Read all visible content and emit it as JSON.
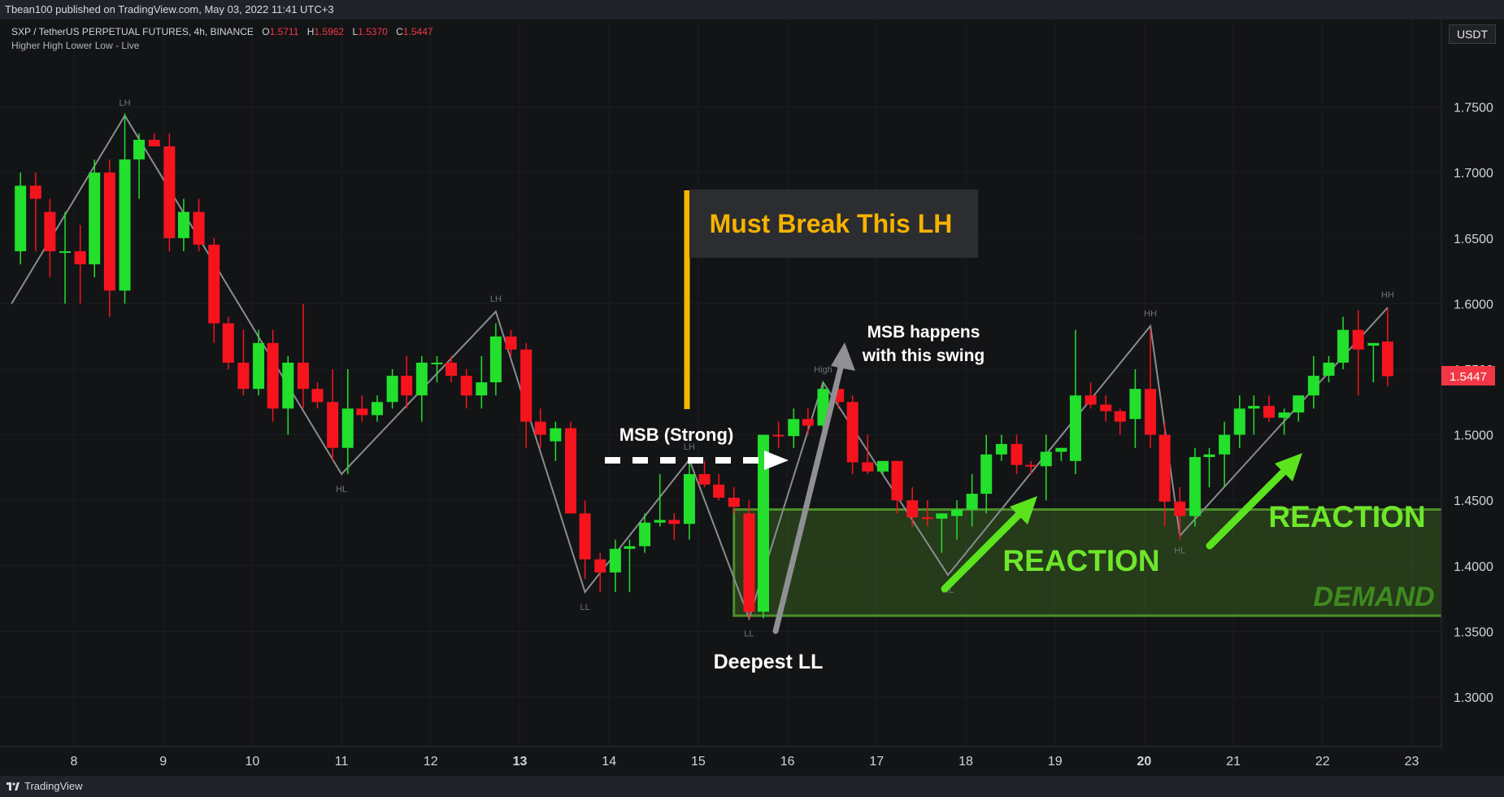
{
  "header": {
    "publish_line": "Tbean100 published on TradingView.com, May 03, 2022 11:41 UTC+3"
  },
  "footer": {
    "brand": "TradingView"
  },
  "legend": {
    "symbol_line": "SXP / TetherUS PERPETUAL FUTURES, 4h, BINANCE",
    "open_label": "O",
    "open": "1.5711",
    "high_label": "H",
    "high": "1.5962",
    "low_label": "L",
    "low": "1.5370",
    "close_label": "C",
    "close": "1.5447",
    "indicator": "Higher High Lower Low - Live"
  },
  "price_axis": {
    "currency": "USDT",
    "last_price": "1.5447",
    "last_price_color": "#f23645"
  },
  "colors": {
    "up": "#22e02c",
    "down": "#f5141e",
    "swing_line": "#8a8c90"
  },
  "chart_data": {
    "type": "candlestick",
    "ylim": [
      1.27,
      1.82
    ],
    "y_ticks": [
      1.3,
      1.35,
      1.4,
      1.45,
      1.5,
      1.55,
      1.6,
      1.65,
      1.7,
      1.75
    ],
    "y_tick_labels": [
      "1.3000",
      "1.3500",
      "1.4000",
      "1.4500",
      "1.5000",
      "1.5500",
      "1.6000",
      "1.6500",
      "1.7000",
      "1.7500"
    ],
    "x_ticks": [
      8,
      9,
      10,
      11,
      12,
      13,
      14,
      15,
      16,
      17,
      18,
      19,
      20,
      21,
      22,
      23
    ],
    "x_tick_labels": [
      "8",
      "9",
      "10",
      "11",
      "12",
      "13",
      "14",
      "15",
      "16",
      "17",
      "18",
      "19",
      "20",
      "21",
      "22",
      "23"
    ],
    "xlim": [
      7.3,
      23.4
    ],
    "candles": [
      {
        "t": 7.4,
        "o": 1.64,
        "h": 1.7,
        "l": 1.63,
        "c": 1.69
      },
      {
        "t": 7.57,
        "o": 1.69,
        "h": 1.7,
        "l": 1.64,
        "c": 1.68
      },
      {
        "t": 7.73,
        "o": 1.67,
        "h": 1.68,
        "l": 1.62,
        "c": 1.64
      },
      {
        "t": 7.9,
        "o": 1.64,
        "h": 1.67,
        "l": 1.6,
        "c": 1.64
      },
      {
        "t": 8.07,
        "o": 1.64,
        "h": 1.66,
        "l": 1.6,
        "c": 1.63
      },
      {
        "t": 8.23,
        "o": 1.63,
        "h": 1.71,
        "l": 1.62,
        "c": 1.7
      },
      {
        "t": 8.4,
        "o": 1.7,
        "h": 1.71,
        "l": 1.59,
        "c": 1.61
      },
      {
        "t": 8.57,
        "o": 1.61,
        "h": 1.745,
        "l": 1.6,
        "c": 1.71
      },
      {
        "t": 8.73,
        "o": 1.71,
        "h": 1.73,
        "l": 1.68,
        "c": 1.725
      },
      {
        "t": 8.9,
        "o": 1.725,
        "h": 1.73,
        "l": 1.72,
        "c": 1.72
      },
      {
        "t": 9.07,
        "o": 1.72,
        "h": 1.73,
        "l": 1.64,
        "c": 1.65
      },
      {
        "t": 9.23,
        "o": 1.65,
        "h": 1.68,
        "l": 1.64,
        "c": 1.67
      },
      {
        "t": 9.4,
        "o": 1.67,
        "h": 1.68,
        "l": 1.64,
        "c": 1.645
      },
      {
        "t": 9.57,
        "o": 1.645,
        "h": 1.65,
        "l": 1.57,
        "c": 1.585
      },
      {
        "t": 9.73,
        "o": 1.585,
        "h": 1.59,
        "l": 1.55,
        "c": 1.555
      },
      {
        "t": 9.9,
        "o": 1.555,
        "h": 1.58,
        "l": 1.53,
        "c": 1.535
      },
      {
        "t": 10.07,
        "o": 1.535,
        "h": 1.58,
        "l": 1.53,
        "c": 1.57
      },
      {
        "t": 10.23,
        "o": 1.57,
        "h": 1.58,
        "l": 1.51,
        "c": 1.52
      },
      {
        "t": 10.4,
        "o": 1.52,
        "h": 1.56,
        "l": 1.5,
        "c": 1.555
      },
      {
        "t": 10.57,
        "o": 1.555,
        "h": 1.6,
        "l": 1.52,
        "c": 1.535
      },
      {
        "t": 10.73,
        "o": 1.535,
        "h": 1.54,
        "l": 1.52,
        "c": 1.525
      },
      {
        "t": 10.9,
        "o": 1.525,
        "h": 1.55,
        "l": 1.48,
        "c": 1.49
      },
      {
        "t": 11.07,
        "o": 1.49,
        "h": 1.55,
        "l": 1.47,
        "c": 1.52
      },
      {
        "t": 11.23,
        "o": 1.52,
        "h": 1.53,
        "l": 1.51,
        "c": 1.515
      },
      {
        "t": 11.4,
        "o": 1.515,
        "h": 1.53,
        "l": 1.51,
        "c": 1.525
      },
      {
        "t": 11.57,
        "o": 1.525,
        "h": 1.55,
        "l": 1.52,
        "c": 1.545
      },
      {
        "t": 11.73,
        "o": 1.545,
        "h": 1.56,
        "l": 1.52,
        "c": 1.53
      },
      {
        "t": 11.9,
        "o": 1.53,
        "h": 1.56,
        "l": 1.51,
        "c": 1.555
      },
      {
        "t": 12.07,
        "o": 1.555,
        "h": 1.56,
        "l": 1.54,
        "c": 1.555
      },
      {
        "t": 12.23,
        "o": 1.555,
        "h": 1.56,
        "l": 1.54,
        "c": 1.545
      },
      {
        "t": 12.4,
        "o": 1.545,
        "h": 1.55,
        "l": 1.52,
        "c": 1.53
      },
      {
        "t": 12.57,
        "o": 1.53,
        "h": 1.56,
        "l": 1.52,
        "c": 1.54
      },
      {
        "t": 12.73,
        "o": 1.54,
        "h": 1.585,
        "l": 1.53,
        "c": 1.575
      },
      {
        "t": 12.9,
        "o": 1.575,
        "h": 1.58,
        "l": 1.56,
        "c": 1.565
      },
      {
        "t": 13.07,
        "o": 1.565,
        "h": 1.57,
        "l": 1.49,
        "c": 1.51
      },
      {
        "t": 13.23,
        "o": 1.51,
        "h": 1.52,
        "l": 1.49,
        "c": 1.5
      },
      {
        "t": 13.4,
        "o": 1.495,
        "h": 1.51,
        "l": 1.48,
        "c": 1.505
      },
      {
        "t": 13.57,
        "o": 1.505,
        "h": 1.51,
        "l": 1.44,
        "c": 1.44
      },
      {
        "t": 13.73,
        "o": 1.44,
        "h": 1.45,
        "l": 1.39,
        "c": 1.405
      },
      {
        "t": 13.9,
        "o": 1.405,
        "h": 1.41,
        "l": 1.38,
        "c": 1.395
      },
      {
        "t": 14.07,
        "o": 1.395,
        "h": 1.42,
        "l": 1.38,
        "c": 1.413
      },
      {
        "t": 14.23,
        "o": 1.413,
        "h": 1.42,
        "l": 1.38,
        "c": 1.415
      },
      {
        "t": 14.4,
        "o": 1.415,
        "h": 1.44,
        "l": 1.41,
        "c": 1.433
      },
      {
        "t": 14.57,
        "o": 1.433,
        "h": 1.47,
        "l": 1.43,
        "c": 1.435
      },
      {
        "t": 14.73,
        "o": 1.435,
        "h": 1.44,
        "l": 1.42,
        "c": 1.432
      },
      {
        "t": 14.9,
        "o": 1.432,
        "h": 1.48,
        "l": 1.42,
        "c": 1.47
      },
      {
        "t": 15.07,
        "o": 1.47,
        "h": 1.48,
        "l": 1.46,
        "c": 1.462
      },
      {
        "t": 15.23,
        "o": 1.462,
        "h": 1.47,
        "l": 1.45,
        "c": 1.452
      },
      {
        "t": 15.4,
        "o": 1.452,
        "h": 1.46,
        "l": 1.44,
        "c": 1.445
      },
      {
        "t": 15.57,
        "o": 1.44,
        "h": 1.45,
        "l": 1.36,
        "c": 1.365
      },
      {
        "t": 15.73,
        "o": 1.365,
        "h": 1.5,
        "l": 1.36,
        "c": 1.5
      },
      {
        "t": 15.9,
        "o": 1.5,
        "h": 1.51,
        "l": 1.49,
        "c": 1.499
      },
      {
        "t": 16.07,
        "o": 1.499,
        "h": 1.52,
        "l": 1.49,
        "c": 1.512
      },
      {
        "t": 16.23,
        "o": 1.512,
        "h": 1.52,
        "l": 1.5,
        "c": 1.507
      },
      {
        "t": 16.4,
        "o": 1.507,
        "h": 1.54,
        "l": 1.5,
        "c": 1.535
      },
      {
        "t": 16.57,
        "o": 1.535,
        "h": 1.54,
        "l": 1.52,
        "c": 1.525
      },
      {
        "t": 16.73,
        "o": 1.525,
        "h": 1.53,
        "l": 1.47,
        "c": 1.479
      },
      {
        "t": 16.9,
        "o": 1.479,
        "h": 1.5,
        "l": 1.47,
        "c": 1.472
      },
      {
        "t": 17.07,
        "o": 1.472,
        "h": 1.48,
        "l": 1.47,
        "c": 1.48
      },
      {
        "t": 17.23,
        "o": 1.48,
        "h": 1.48,
        "l": 1.44,
        "c": 1.45
      },
      {
        "t": 17.4,
        "o": 1.45,
        "h": 1.46,
        "l": 1.43,
        "c": 1.437
      },
      {
        "t": 17.57,
        "o": 1.437,
        "h": 1.45,
        "l": 1.43,
        "c": 1.436
      },
      {
        "t": 17.73,
        "o": 1.436,
        "h": 1.44,
        "l": 1.41,
        "c": 1.44
      },
      {
        "t": 17.9,
        "o": 1.438,
        "h": 1.45,
        "l": 1.42,
        "c": 1.443
      },
      {
        "t": 18.07,
        "o": 1.443,
        "h": 1.47,
        "l": 1.43,
        "c": 1.455
      },
      {
        "t": 18.23,
        "o": 1.455,
        "h": 1.5,
        "l": 1.44,
        "c": 1.485
      },
      {
        "t": 18.4,
        "o": 1.485,
        "h": 1.5,
        "l": 1.48,
        "c": 1.493
      },
      {
        "t": 18.57,
        "o": 1.493,
        "h": 1.5,
        "l": 1.47,
        "c": 1.477
      },
      {
        "t": 18.73,
        "o": 1.477,
        "h": 1.48,
        "l": 1.47,
        "c": 1.476
      },
      {
        "t": 18.9,
        "o": 1.476,
        "h": 1.5,
        "l": 1.45,
        "c": 1.487
      },
      {
        "t": 19.07,
        "o": 1.487,
        "h": 1.49,
        "l": 1.48,
        "c": 1.49
      },
      {
        "t": 19.23,
        "o": 1.48,
        "h": 1.58,
        "l": 1.47,
        "c": 1.53
      },
      {
        "t": 19.4,
        "o": 1.53,
        "h": 1.54,
        "l": 1.52,
        "c": 1.523
      },
      {
        "t": 19.57,
        "o": 1.523,
        "h": 1.53,
        "l": 1.51,
        "c": 1.518
      },
      {
        "t": 19.73,
        "o": 1.518,
        "h": 1.52,
        "l": 1.5,
        "c": 1.51
      },
      {
        "t": 19.9,
        "o": 1.512,
        "h": 1.55,
        "l": 1.49,
        "c": 1.535
      },
      {
        "t": 20.07,
        "o": 1.535,
        "h": 1.58,
        "l": 1.49,
        "c": 1.5
      },
      {
        "t": 20.23,
        "o": 1.5,
        "h": 1.51,
        "l": 1.43,
        "c": 1.449
      },
      {
        "t": 20.4,
        "o": 1.449,
        "h": 1.46,
        "l": 1.42,
        "c": 1.438
      },
      {
        "t": 20.57,
        "o": 1.438,
        "h": 1.49,
        "l": 1.43,
        "c": 1.483
      },
      {
        "t": 20.73,
        "o": 1.483,
        "h": 1.49,
        "l": 1.46,
        "c": 1.485
      },
      {
        "t": 20.9,
        "o": 1.485,
        "h": 1.51,
        "l": 1.46,
        "c": 1.5
      },
      {
        "t": 21.07,
        "o": 1.5,
        "h": 1.53,
        "l": 1.49,
        "c": 1.52
      },
      {
        "t": 21.23,
        "o": 1.52,
        "h": 1.53,
        "l": 1.5,
        "c": 1.522
      },
      {
        "t": 21.4,
        "o": 1.522,
        "h": 1.53,
        "l": 1.51,
        "c": 1.513
      },
      {
        "t": 21.57,
        "o": 1.513,
        "h": 1.52,
        "l": 1.5,
        "c": 1.517
      },
      {
        "t": 21.73,
        "o": 1.517,
        "h": 1.53,
        "l": 1.51,
        "c": 1.53
      },
      {
        "t": 21.9,
        "o": 1.53,
        "h": 1.56,
        "l": 1.52,
        "c": 1.545
      },
      {
        "t": 22.07,
        "o": 1.545,
        "h": 1.56,
        "l": 1.54,
        "c": 1.555
      },
      {
        "t": 22.23,
        "o": 1.555,
        "h": 1.59,
        "l": 1.55,
        "c": 1.58
      },
      {
        "t": 22.4,
        "o": 1.58,
        "h": 1.595,
        "l": 1.53,
        "c": 1.565
      },
      {
        "t": 22.57,
        "o": 1.568,
        "h": 1.57,
        "l": 1.54,
        "c": 1.57
      },
      {
        "t": 22.73,
        "o": 1.5711,
        "h": 1.5962,
        "l": 1.537,
        "c": 1.5447
      }
    ],
    "swing_labels": [
      {
        "label": "LH",
        "t": 8.57,
        "y": 1.7435,
        "pos": "above"
      },
      {
        "label": "HL",
        "t": 11.0,
        "y": 1.47,
        "pos": "below"
      },
      {
        "label": "LH",
        "t": 12.73,
        "y": 1.594,
        "pos": "above"
      },
      {
        "label": "LL",
        "t": 13.73,
        "y": 1.38,
        "pos": "below"
      },
      {
        "label": "LH",
        "t": 14.9,
        "y": 1.481,
        "pos": "above"
      },
      {
        "label": "LL",
        "t": 15.57,
        "y": 1.36,
        "pos": "below"
      },
      {
        "label": "High",
        "t": 16.4,
        "y": 1.54,
        "pos": "above"
      },
      {
        "label": "HL",
        "t": 17.8,
        "y": 1.393,
        "pos": "below"
      },
      {
        "label": "HH",
        "t": 20.07,
        "y": 1.583,
        "pos": "above"
      },
      {
        "label": "HL",
        "t": 20.4,
        "y": 1.423,
        "pos": "below"
      },
      {
        "label": "HH",
        "t": 22.73,
        "y": 1.597,
        "pos": "above"
      }
    ],
    "swing_path": [
      [
        7.3,
        1.6
      ],
      [
        8.57,
        1.7435
      ],
      [
        11.0,
        1.47
      ],
      [
        12.73,
        1.594
      ],
      [
        13.73,
        1.38
      ],
      [
        14.9,
        1.481
      ],
      [
        15.57,
        1.36
      ],
      [
        16.4,
        1.54
      ],
      [
        17.8,
        1.393
      ],
      [
        20.07,
        1.583
      ],
      [
        20.4,
        1.423
      ],
      [
        22.73,
        1.597
      ]
    ],
    "demand_ob": {
      "t0": 15.4,
      "t1": 23.88,
      "y0": 1.362,
      "y1": 1.443,
      "label": "DEMAND OB"
    },
    "annotations": {
      "must_break_title": "Must Break This LH",
      "msb_strong": "MSB (Strong)",
      "msb_swing_line1": "MSB happens",
      "msb_swing_line2": "with this swing",
      "deepest_ll": "Deepest LL",
      "reaction_1": "REACTION",
      "reaction_2": "REACTION"
    }
  }
}
